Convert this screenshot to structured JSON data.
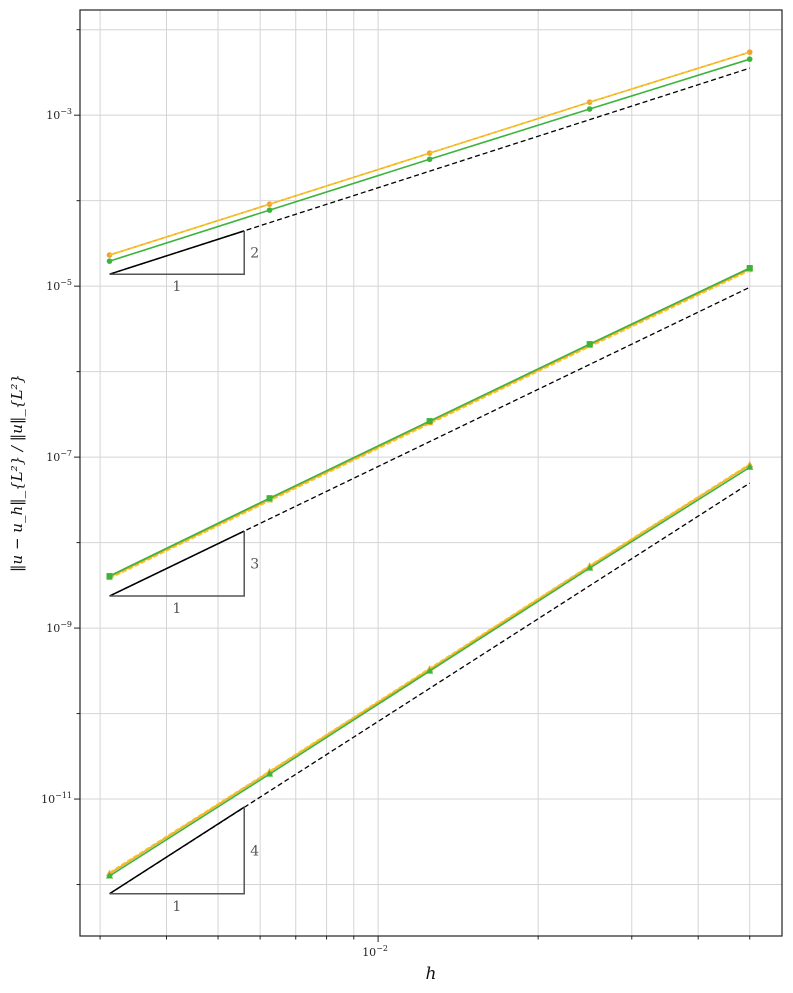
{
  "chart_data": {
    "type": "line",
    "title": "",
    "xlabel": "h",
    "ylabel": "‖u − u_h‖_{L²} / ‖u‖_{L²}",
    "xscale": "log",
    "yscale": "log",
    "xlim": [
      0.00275,
      0.0575
    ],
    "ylim": [
      2.5e-13,
      0.017
    ],
    "grid": true,
    "legend": "none",
    "x": [
      0.003125,
      0.00625,
      0.0125,
      0.025,
      0.05
    ],
    "x_tick_labels": [
      {
        "value": 0.01,
        "base": "10",
        "exp": "−2"
      }
    ],
    "y_tick_labels": [
      {
        "value": 0.001,
        "base": "10",
        "exp": "−3"
      },
      {
        "value": 1e-05,
        "base": "10",
        "exp": "−5"
      },
      {
        "value": 1e-07,
        "base": "10",
        "exp": "−7"
      },
      {
        "value": 1e-09,
        "base": "10",
        "exp": "−9"
      },
      {
        "value": 1e-11,
        "base": "10",
        "exp": "−11"
      }
    ],
    "series": [
      {
        "group": 1,
        "color": "#f0a030",
        "style": "solid",
        "marker": "circle",
        "values": [
          2.31e-05,
          9.1e-05,
          0.00036,
          0.00142,
          0.00546
        ]
      },
      {
        "group": 1,
        "color": "#f5c820",
        "style": "dashed",
        "marker": "none",
        "values": [
          2.31e-05,
          9.1e-05,
          0.00036,
          0.00142,
          0.00546
        ]
      },
      {
        "group": 1,
        "color": "#3cb43c",
        "style": "solid",
        "marker": "circle",
        "values": [
          1.96e-05,
          7.75e-05,
          0.000305,
          0.00118,
          0.00452
        ]
      },
      {
        "group": 2,
        "color": "#f0a030",
        "style": "solid",
        "marker": "square",
        "values": [
          3.95e-09,
          3.2e-08,
          2.56e-07,
          2.04e-06,
          1.58e-05
        ]
      },
      {
        "group": 2,
        "color": "#f5c820",
        "style": "dashed",
        "marker": "none",
        "values": [
          3.8e-09,
          3.08e-08,
          2.46e-07,
          1.96e-06,
          1.52e-05
        ]
      },
      {
        "group": 2,
        "color": "#3cb43c",
        "style": "solid",
        "marker": "square",
        "values": [
          4.06e-09,
          3.31e-08,
          2.64e-07,
          2.1e-06,
          1.63e-05
        ]
      },
      {
        "group": 3,
        "color": "#f0a030",
        "style": "solid",
        "marker": "triangle",
        "values": [
          1.34e-12,
          2.08e-11,
          3.3e-10,
          5.3e-09,
          8.1e-08
        ]
      },
      {
        "group": 3,
        "color": "#f5c820",
        "style": "dashed",
        "marker": "none",
        "values": [
          1.38e-12,
          2.12e-11,
          3.38e-10,
          5.4e-09,
          8.3e-08
        ]
      },
      {
        "group": 3,
        "color": "#3cb43c",
        "style": "solid",
        "marker": "triangle",
        "values": [
          1.26e-12,
          1.96e-11,
          3.14e-10,
          5.03e-09,
          7.6e-08
        ]
      }
    ],
    "reference_lines": [
      {
        "order": 2,
        "color": "#000000",
        "style": "dashed",
        "x": [
          0.003125,
          0.05
        ],
        "values": [
          1.38e-05,
          0.00355
        ]
      },
      {
        "order": 3,
        "color": "#000000",
        "style": "dashed",
        "x": [
          0.003125,
          0.05
        ],
        "values": [
          2.37e-09,
          9.7e-06
        ]
      },
      {
        "order": 4,
        "color": "#000000",
        "style": "dashed",
        "x": [
          0.003125,
          0.05
        ],
        "values": [
          7.8e-13,
          4.97e-08
        ]
      }
    ],
    "slope_triangles": [
      {
        "run_label": "1",
        "rise_label": "2",
        "order": 2,
        "x_start": 0.003125,
        "x_end": 0.0056
      },
      {
        "run_label": "1",
        "rise_label": "3",
        "order": 3,
        "x_start": 0.003125,
        "x_end": 0.0056
      },
      {
        "run_label": "1",
        "rise_label": "4",
        "order": 4,
        "x_start": 0.003125,
        "x_end": 0.0056
      }
    ]
  }
}
